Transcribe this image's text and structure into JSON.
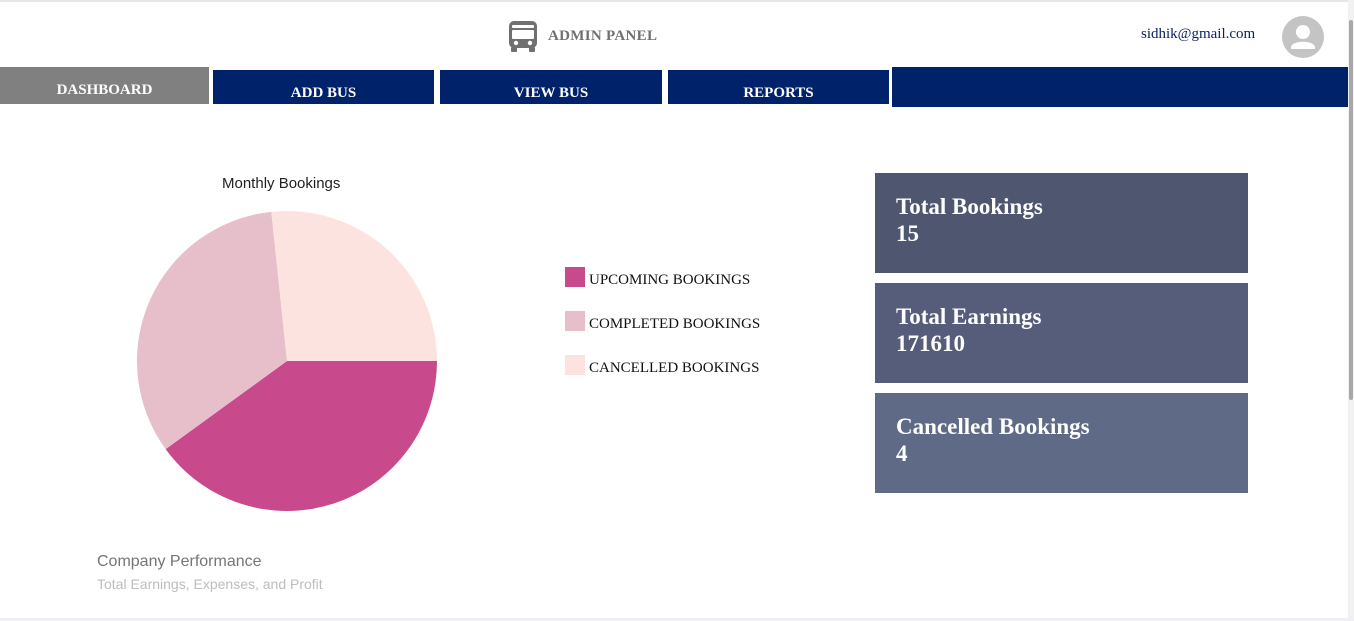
{
  "header": {
    "title": "ADMIN PANEL",
    "brand_icon": "bus-icon",
    "user_email": "sidhik@gmail.com",
    "avatar_icon": "user-avatar-icon"
  },
  "nav": {
    "tabs": [
      {
        "label": "DASHBOARD",
        "active": true
      },
      {
        "label": "ADD BUS",
        "active": false
      },
      {
        "label": "VIEW BUS",
        "active": false
      },
      {
        "label": "REPORTS",
        "active": false
      }
    ],
    "active_color": "#808080",
    "tab_color": "#00226b"
  },
  "chart_data": {
    "type": "pie",
    "title": "Monthly Bookings",
    "labels": [
      "UPCOMING BOOKINGS",
      "COMPLETED BOOKINGS",
      "CANCELLED BOOKINGS"
    ],
    "values": [
      6,
      5,
      4
    ],
    "colors": [
      "#c94a8c",
      "#e6bfca",
      "#fce3e0"
    ],
    "legend_position": "right"
  },
  "stats": [
    {
      "title": "Total Bookings",
      "value": "15",
      "color": "#4f5670"
    },
    {
      "title": "Total Earnings",
      "value": "171610",
      "color": "#555d7a"
    },
    {
      "title": "Cancelled Bookings",
      "value": "4",
      "color": "#5f6a87"
    }
  ],
  "performance": {
    "title": "Company Performance",
    "subtitle": "Total Earnings, Expenses, and Profit"
  }
}
